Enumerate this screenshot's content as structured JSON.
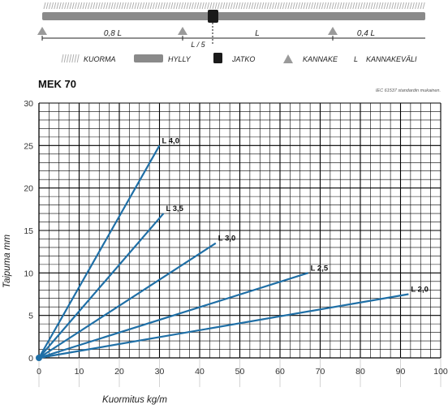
{
  "diagram": {
    "spans": [
      "0,8 L",
      "L",
      "0,4 L"
    ],
    "l5_label": "L / 5"
  },
  "legend": {
    "kuorma": "KUORMA",
    "hylly": "HYLLY",
    "jatko": "JATKO",
    "kannake": "KANNAKE",
    "l_symbol": "L",
    "kannakevali": "KANNAKEVÄLI"
  },
  "colors": {
    "line": "#1f6fa6",
    "shelf": "#8a8a8a",
    "grid": "#000000",
    "support": "#9a9a9a",
    "joint": "#1a1a1a"
  },
  "chart_data": {
    "type": "line",
    "title": "MEK 70",
    "note": "IEC 61537 standardin mukainen.",
    "xlabel": "Kuormitus kg/m",
    "ylabel": "Taipuma mm",
    "xlim": [
      0,
      100
    ],
    "ylim": [
      0,
      30
    ],
    "x_ticks": [
      0,
      10,
      20,
      30,
      40,
      50,
      60,
      70,
      80,
      90,
      100
    ],
    "y_ticks": [
      0,
      5,
      10,
      15,
      20,
      25,
      30
    ],
    "grid": true,
    "series": [
      {
        "name": "L 4,0",
        "x": [
          0,
          30
        ],
        "y": [
          0,
          25
        ]
      },
      {
        "name": "L 3,5",
        "x": [
          0,
          31
        ],
        "y": [
          0,
          17
        ]
      },
      {
        "name": "L 3,0",
        "x": [
          0,
          44
        ],
        "y": [
          0,
          13.5
        ]
      },
      {
        "name": "L 2,5",
        "x": [
          0,
          67
        ],
        "y": [
          0,
          10
        ]
      },
      {
        "name": "L 2,0",
        "x": [
          0,
          92
        ],
        "y": [
          0,
          7.5
        ]
      }
    ]
  }
}
